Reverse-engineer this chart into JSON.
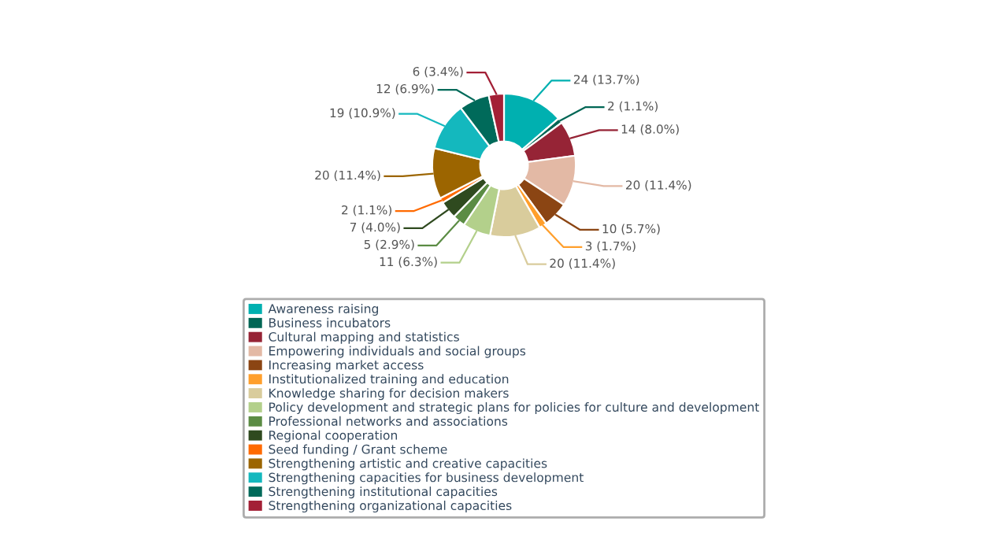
{
  "chart_data": {
    "type": "donut",
    "categories": [
      "Awareness raising",
      "Business incubators",
      "Cultural mapping and statistics",
      "Empowering individuals and social groups",
      "Increasing market access",
      "Institutionalized training and education",
      "Knowledge sharing for decision makers",
      "Policy development and strategic plans for policies for culture and development",
      "Professional networks and associations",
      "Regional cooperation",
      "Seed funding / Grant scheme",
      "Strengthening artistic and creative capacities",
      "Strengthening capacities for business development",
      "Strengthening institutional capacities",
      "Strengthening organizational capacities"
    ],
    "values": [
      24,
      2,
      14,
      20,
      10,
      3,
      20,
      11,
      5,
      7,
      2,
      20,
      19,
      12,
      6
    ],
    "value_labels": [
      "24 (13.7%)",
      "2 (1.1%)",
      "14 (8.0%)",
      "20 (11.4%)",
      "10 (5.7%)",
      "3 (1.7%)",
      "20 (11.4%)",
      "11 (6.3%)",
      "5 (2.9%)",
      "7 (4.0%)",
      "2 (1.1%)",
      "20 (11.4%)",
      "19 (10.9%)",
      "12 (6.9%)",
      "6 (3.4%)"
    ],
    "colors": [
      "#00b0b0",
      "#006655",
      "#962436",
      "#e3b9a5",
      "#8b4513",
      "#ff9f2c",
      "#d9cc9c",
      "#b3d08b",
      "#5b8c44",
      "#2f4a1f",
      "#ff6a00",
      "#9c6500",
      "#14b8be",
      "#006a5a",
      "#a32036"
    ],
    "legend": "bottom"
  }
}
